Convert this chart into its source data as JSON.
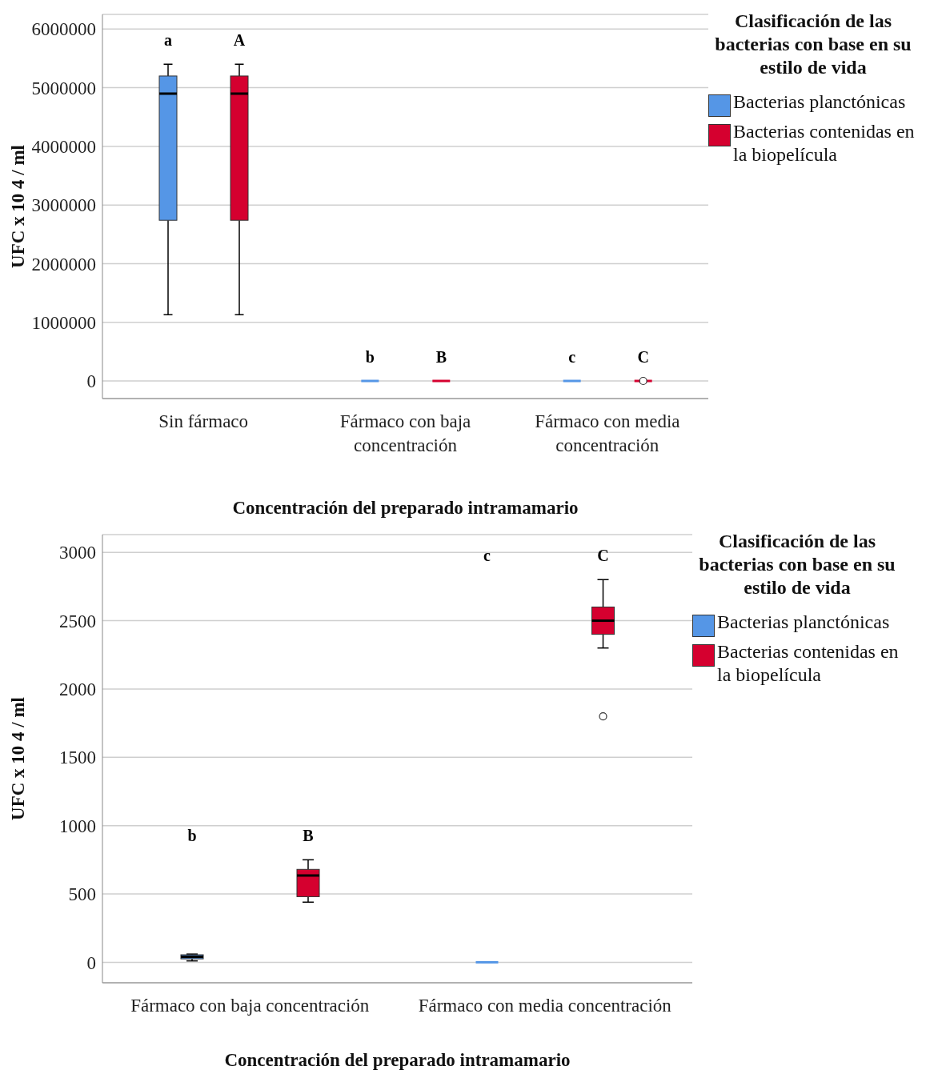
{
  "chart_data": [
    {
      "type": "box",
      "categories": [
        "Sin fármaco",
        "Fármaco con baja concentración",
        "Fármaco con media concentración"
      ],
      "series": [
        {
          "name": "Bacterias planctónicas",
          "color": "#5596e6",
          "boxes": [
            {
              "low": 1130000,
              "q1": 2740000,
              "median": 4900000,
              "q3": 5200000,
              "high": 5400000
            },
            {
              "low": 0,
              "q1": 0,
              "median": 0,
              "q3": 0,
              "high": 0
            },
            {
              "low": 0,
              "q1": 0,
              "median": 0,
              "q3": 0,
              "high": 0
            }
          ]
        },
        {
          "name": "Bacterias contenidas en la biopelícula",
          "color": "#d5002f",
          "boxes": [
            {
              "low": 1130000,
              "q1": 2740000,
              "median": 4900000,
              "q3": 5200000,
              "high": 5400000
            },
            {
              "low": 0,
              "q1": 0,
              "median": 0,
              "q3": 0,
              "high": 0
            },
            {
              "low": 0,
              "q1": 0,
              "median": 0,
              "q3": 0,
              "high": 0,
              "outliers": [
                0
              ]
            }
          ]
        }
      ],
      "xlabel": "Concentración del preparado intramamario",
      "ylabel": "UFC x 10 4 / ml",
      "legend_title": "Clasificación de las bacterias con base en su estilo de vida",
      "ylim": [
        -300000,
        6250000
      ],
      "yticks": [
        0,
        1000000,
        2000000,
        3000000,
        4000000,
        5000000,
        6000000
      ],
      "grid": "y",
      "legend": "right",
      "annotations": [
        "a",
        "A",
        "b",
        "B",
        "c",
        "C"
      ]
    },
    {
      "type": "box",
      "categories": [
        "Fármaco con baja concentración",
        "Fármaco con media concentración"
      ],
      "series": [
        {
          "name": "Bacterias planctónicas",
          "color": "#5596e6",
          "boxes": [
            {
              "low": 10,
              "q1": 25,
              "median": 40,
              "q3": 55,
              "high": 60
            },
            {
              "low": 0,
              "q1": 0,
              "median": 0,
              "q3": 0,
              "high": 0
            }
          ]
        },
        {
          "name": "Bacterias contenidas en la biopelícula",
          "color": "#d5002f",
          "boxes": [
            {
              "low": 440,
              "q1": 480,
              "median": 635,
              "q3": 680,
              "high": 750
            },
            {
              "low": 2300,
              "q1": 2400,
              "median": 2500,
              "q3": 2600,
              "high": 2800,
              "outliers": [
                1800
              ]
            }
          ]
        }
      ],
      "xlabel": "Concentración del preparado intramamario",
      "ylabel": "UFC x 10 4 / ml",
      "legend_title": "Clasificación de las bacterias con base en su estilo de vida",
      "ylim": [
        -150,
        3130
      ],
      "yticks": [
        0,
        500,
        1000,
        1500,
        2000,
        2500,
        3000
      ],
      "grid": "y",
      "legend": "right",
      "annotations": [
        "b",
        "B",
        "c",
        "C"
      ]
    }
  ]
}
